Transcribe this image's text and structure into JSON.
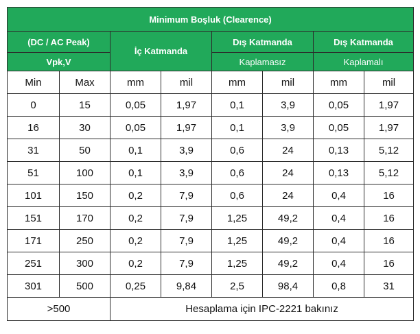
{
  "table": {
    "title": "Minimum Boşluk (Clearence)",
    "voltage_header": "(DC / AC Peak)",
    "voltage_unit": "Vpk,V",
    "inner_header": "İç Katmanda",
    "outer_uncoated_header": "Dış Katmanda",
    "outer_uncoated_sub": "Kaplamasız",
    "outer_coated_header": "Dış Katmanda",
    "outer_coated_sub": "Kaplamalı",
    "columns": [
      "Min",
      "Max",
      "mm",
      "mil",
      "mm",
      "mil",
      "mm",
      "mil"
    ],
    "rows": [
      [
        "0",
        "15",
        "0,05",
        "1,97",
        "0,1",
        "3,9",
        "0,05",
        "1,97"
      ],
      [
        "16",
        "30",
        "0,05",
        "1,97",
        "0,1",
        "3,9",
        "0,05",
        "1,97"
      ],
      [
        "31",
        "50",
        "0,1",
        "3,9",
        "0,6",
        "24",
        "0,13",
        "5,12"
      ],
      [
        "51",
        "100",
        "0,1",
        "3,9",
        "0,6",
        "24",
        "0,13",
        "5,12"
      ],
      [
        "101",
        "150",
        "0,2",
        "7,9",
        "0,6",
        "24",
        "0,4",
        "16"
      ],
      [
        "151",
        "170",
        "0,2",
        "7,9",
        "1,25",
        "49,2",
        "0,4",
        "16"
      ],
      [
        "171",
        "250",
        "0,2",
        "7,9",
        "1,25",
        "49,2",
        "0,4",
        "16"
      ],
      [
        "251",
        "300",
        "0,2",
        "7,9",
        "1,25",
        "49,2",
        "0,4",
        "16"
      ],
      [
        "301",
        "500",
        "0,25",
        "9,84",
        "2,5",
        "98,4",
        "0,8",
        "31"
      ]
    ],
    "footer_range": ">500",
    "footer_note": "Hesaplama için IPC-2221 bakınız",
    "colors": {
      "header_bg": "#21a95a",
      "header_text": "#ffffff",
      "border": "#2b2b2b"
    }
  }
}
